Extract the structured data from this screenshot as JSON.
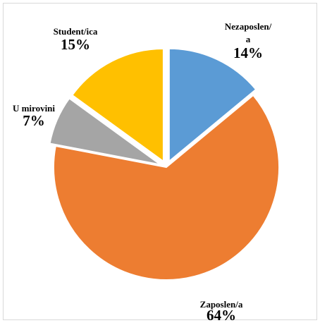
{
  "chart_data": {
    "type": "pie",
    "slices": [
      {
        "label": [
          "Nezaposlen/",
          "a"
        ],
        "percent_label": "14%",
        "value": 14,
        "color": "#5b9bd5"
      },
      {
        "label": [
          "Zaposlen/a"
        ],
        "percent_label": "64%",
        "value": 64,
        "color": "#ed7d31"
      },
      {
        "label": [
          "U mirovini"
        ],
        "percent_label": "7%",
        "value": 7,
        "color": "#a5a5a5"
      },
      {
        "label": [
          "Student/ica"
        ],
        "percent_label": "15%",
        "value": 15,
        "color": "#ffc000"
      }
    ],
    "exploded": true,
    "legend": "none"
  }
}
